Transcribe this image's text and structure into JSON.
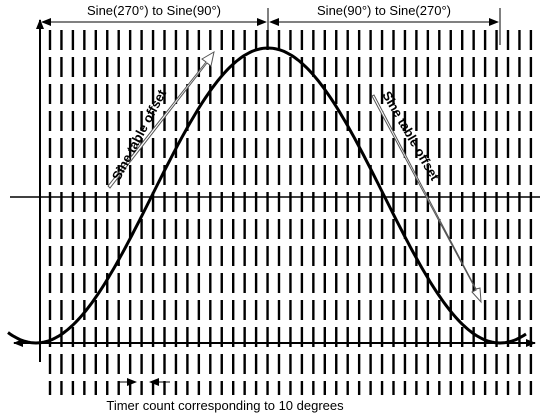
{
  "labels": {
    "left_span": "Sine(270°) to Sine(90°)",
    "right_span": "Sine(90°) to Sine(270°)",
    "left_offset": "Sine table offset",
    "right_offset": "Sine table offset",
    "timer_count": "Timer count corresponding to 10 degrees"
  }
}
